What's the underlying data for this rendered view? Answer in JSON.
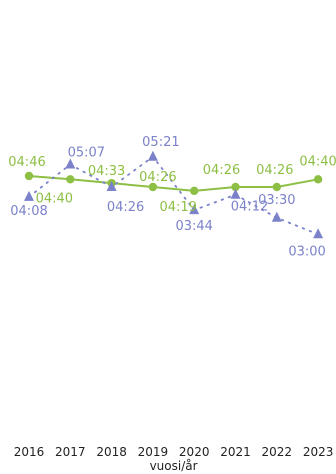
{
  "chart_data": {
    "type": "line",
    "xlabel": "vuosi/år",
    "ylabel": "",
    "ylim_minutes": [
      0,
      360
    ],
    "categories": [
      "2016",
      "2017",
      "2018",
      "2019",
      "2020",
      "2021",
      "2022",
      "2023"
    ],
    "series": [
      {
        "name": "",
        "color": "#8dbf45",
        "style": "solid",
        "marker": "circle",
        "values_minutes": [
          286,
          280,
          273,
          266,
          259,
          266,
          266,
          280
        ],
        "labels": [
          "04:46",
          "04:40",
          "04:33",
          "04:26",
          "04:19",
          "04:26",
          "04:26",
          "04:40"
        ]
      },
      {
        "name": "",
        "color": "#7b82c9",
        "style": "dotted",
        "marker": "triangle",
        "values_minutes": [
          248,
          307,
          266,
          321,
          224,
          252,
          210,
          180
        ],
        "labels": [
          "04:08",
          "05:07",
          "04:26",
          "05:21",
          "03:44",
          "04:12",
          "03:30",
          "03:00"
        ]
      }
    ],
    "grid": false,
    "legend": "none"
  }
}
